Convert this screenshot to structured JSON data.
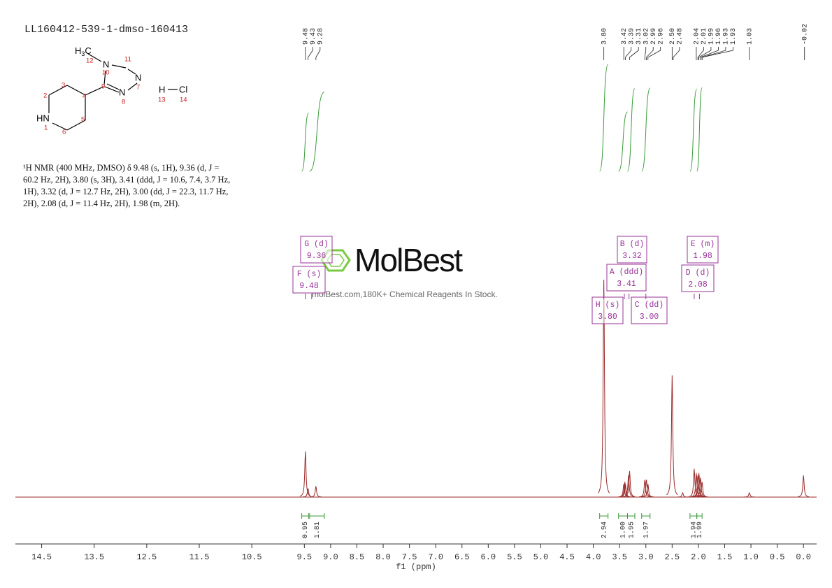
{
  "chart_data": {
    "type": "spectrum",
    "title": "LL160412-539-1-dmso-160413",
    "xlabel": "f1 (ppm)",
    "xlim": [
      15.0,
      -0.25
    ],
    "xticks": [
      {
        "value": 0,
        "label": "0.0"
      },
      0.5,
      {
        "value": 1,
        "label": "1.0"
      },
      1.5,
      {
        "value": 2,
        "label": "2.0"
      },
      2.5,
      {
        "value": 3,
        "label": "3.0"
      },
      3.5,
      {
        "value": 4,
        "label": "4.0"
      },
      4.5,
      {
        "value": 5,
        "label": "5.0"
      },
      5.5,
      {
        "value": 6,
        "label": "6.0"
      },
      6.5,
      {
        "value": 7,
        "label": "7.0"
      },
      7.5,
      {
        "value": 8,
        "label": "8.0"
      },
      8.5,
      {
        "value": 9,
        "label": "9.0"
      },
      9.5,
      10.5,
      11.5,
      12.5,
      13.5,
      14.5
    ],
    "ylim": [
      0,
      100
    ],
    "color": "#9b2a2a",
    "integral_color": "#3a9a3a",
    "multiplet_color": "#993399",
    "peaks": {
      "x": [
        9.48,
        9.43,
        9.28,
        3.8,
        3.42,
        3.4,
        3.39,
        3.33,
        3.31,
        3.02,
        2.99,
        2.96,
        2.5,
        2.3,
        2.08,
        2.04,
        2.01,
        1.99,
        1.96,
        1.93,
        1.03,
        0.0
      ],
      "values": [
        21,
        4,
        5,
        100,
        6,
        7,
        6,
        10,
        12,
        8,
        8,
        6,
        56,
        2,
        13,
        11,
        10,
        11,
        9,
        7,
        2,
        10
      ]
    },
    "peak_labels": [
      9.48,
      9.43,
      9.28,
      {
        "value": 3.8,
        "label": "3.80"
      },
      3.42,
      3.39,
      3.31,
      3.02,
      2.99,
      2.96,
      {
        "value": 2.5,
        "label": "2.50"
      },
      2.48,
      2.04,
      2.01,
      1.99,
      1.96,
      1.93,
      1.93,
      1.03,
      -0.02
    ],
    "integrals": [
      {
        "range": [
          9.55,
          9.42
        ],
        "value": 0.95
      },
      {
        "range": [
          9.4,
          9.12
        ],
        "value": 1.81
      },
      {
        "range": [
          3.88,
          3.72
        ],
        "value": 2.94
      },
      {
        "range": [
          3.52,
          3.35
        ],
        "value": {
          "value": 1,
          "label": "1.00"
        }
      },
      {
        "range": [
          3.35,
          3.21
        ],
        "value": 1.95
      },
      {
        "range": [
          3.08,
          2.92
        ],
        "value": 1.97
      },
      {
        "range": [
          2.16,
          2.03
        ],
        "value": 1.94
      },
      {
        "range": [
          2.03,
          1.93
        ],
        "value": 1.99
      }
    ],
    "multiplets": [
      {
        "name": "G (d)",
        "shift": 9.36
      },
      {
        "name": "F (s)",
        "shift": 9.48
      },
      {
        "name": "B (d)",
        "shift": 3.32
      },
      {
        "name": "A (ddd)",
        "shift": 3.41
      },
      {
        "name": "H (s)",
        "shift": {
          "value": 3.8,
          "label": "3.80"
        }
      },
      {
        "name": "C (dd)",
        "shift": {
          "value": 3,
          "label": "3.00"
        }
      },
      {
        "name": "E (m)",
        "shift": 1.98
      },
      {
        "name": "D (d)",
        "shift": 2.08
      }
    ]
  },
  "structure": {
    "methyl": [
      "H",
      "3",
      "C"
    ],
    "atoms": [
      "N",
      "N",
      "N",
      "HN",
      "H",
      "Cl"
    ],
    "numbers": [
      "12",
      "10",
      "11",
      "7",
      "8",
      "9",
      "4",
      "3",
      "2",
      "1",
      "6",
      "5",
      "13",
      "14"
    ]
  },
  "description": "¹H NMR (400 MHz, DMSO) δ 9.48 (s, 1H), 9.36 (d, J = 60.2 Hz, 2H), 3.80 (s, 3H), 3.41 (ddd, J = 10.6, 7.4, 3.7 Hz, 1H), 3.32 (d, J = 12.7 Hz, 2H), 3.00 (dd, J = 22.3, 11.7 Hz, 2H), 2.08 (d, J = 11.4 Hz, 2H), 1.98 (m, 2H).",
  "watermark": {
    "brand": "MolBest",
    "tagline": "molBest.com,180K+ Chemical Reagents In Stock."
  }
}
